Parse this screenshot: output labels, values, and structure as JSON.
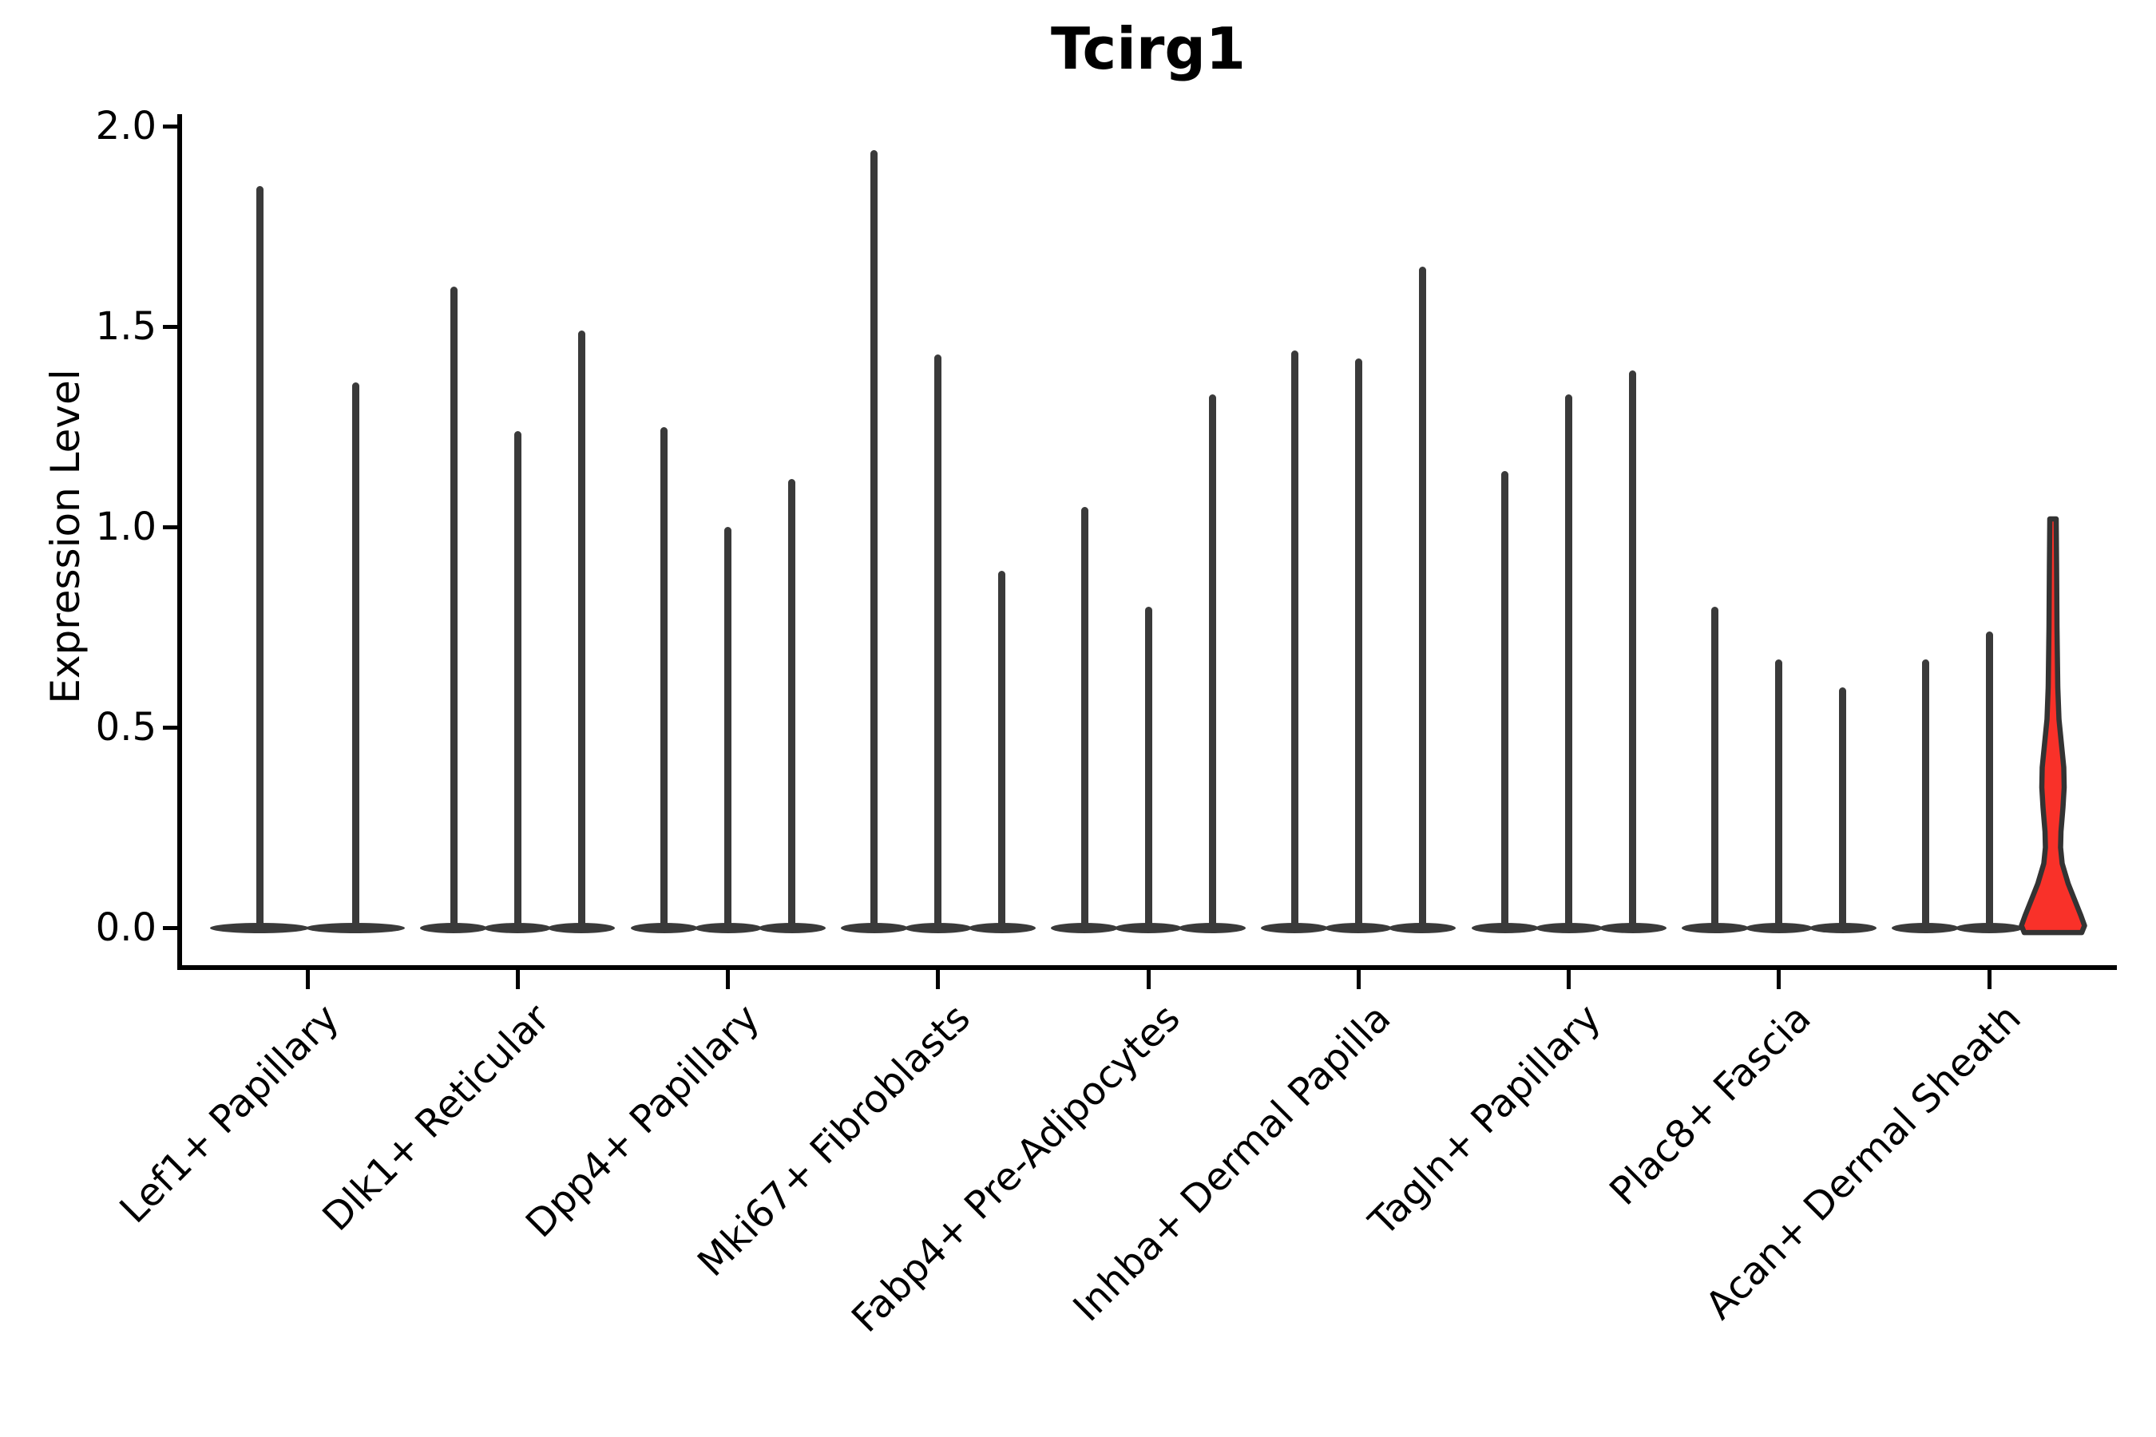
{
  "title": "Tcirg1",
  "axes": {
    "ylabel": "Expression Level",
    "xlabel": "",
    "ytick_labels": [
      "0.0",
      "0.5",
      "1.0",
      "1.5",
      "2.0"
    ]
  },
  "chart_data": {
    "type": "violin",
    "title": "Tcirg1",
    "xlabel": "",
    "ylabel": "Expression Level",
    "ylim": [
      0.0,
      2.0
    ],
    "yticks": [
      0.0,
      0.5,
      1.0,
      1.5,
      2.0
    ],
    "grid": false,
    "legend": false,
    "description": "Grouped violin plot of Tcirg1 expression; each cluster shows 2-3 needle-thin violins rising from a flat base at 0. Only the last violin of Acan+ Dermal Sheath is highlighted red with a visible density bulge.",
    "categories": [
      "Lef1+ Papillary",
      "Dlk1+ Reticular",
      "Dpp4+ Papillary",
      "Mki67+ Fibroblasts",
      "Fabp4+ Pre-Adipocytes",
      "Inhba+ Dermal Papilla",
      "Tagln+ Papillary",
      "Plac8+ Fascia",
      "Acan+ Dermal Sheath"
    ],
    "groups": [
      {
        "category": "Lef1+ Papillary",
        "spike_max_values": [
          1.85,
          1.36
        ]
      },
      {
        "category": "Dlk1+ Reticular",
        "spike_max_values": [
          1.6,
          1.24,
          1.49
        ]
      },
      {
        "category": "Dpp4+ Papillary",
        "spike_max_values": [
          1.25,
          1.0,
          1.12
        ]
      },
      {
        "category": "Mki67+ Fibroblasts",
        "spike_max_values": [
          1.94,
          1.43,
          0.89
        ]
      },
      {
        "category": "Fabp4+ Pre-Adipocytes",
        "spike_max_values": [
          1.05,
          0.8,
          1.33
        ]
      },
      {
        "category": "Inhba+ Dermal Papilla",
        "spike_max_values": [
          1.44,
          1.42,
          1.65
        ]
      },
      {
        "category": "Tagln+ Papillary",
        "spike_max_values": [
          1.14,
          1.33,
          1.39
        ]
      },
      {
        "category": "Plac8+ Fascia",
        "spike_max_values": [
          0.8,
          0.67,
          0.6
        ]
      },
      {
        "category": "Acan+ Dermal Sheath",
        "spike_max_values": [
          0.67,
          0.74,
          1.02
        ]
      }
    ],
    "highlight": {
      "category": "Acan+ Dermal Sheath",
      "violin_index": 2,
      "max_value": 1.02,
      "bulge_center_value": 0.36,
      "pinch_value": 0.2
    },
    "colors": {
      "violin": "#3a3a3a",
      "highlight_fill": "#f93129",
      "highlight_stroke": "#333333",
      "axis": "#000000",
      "background": "#ffffff"
    }
  }
}
